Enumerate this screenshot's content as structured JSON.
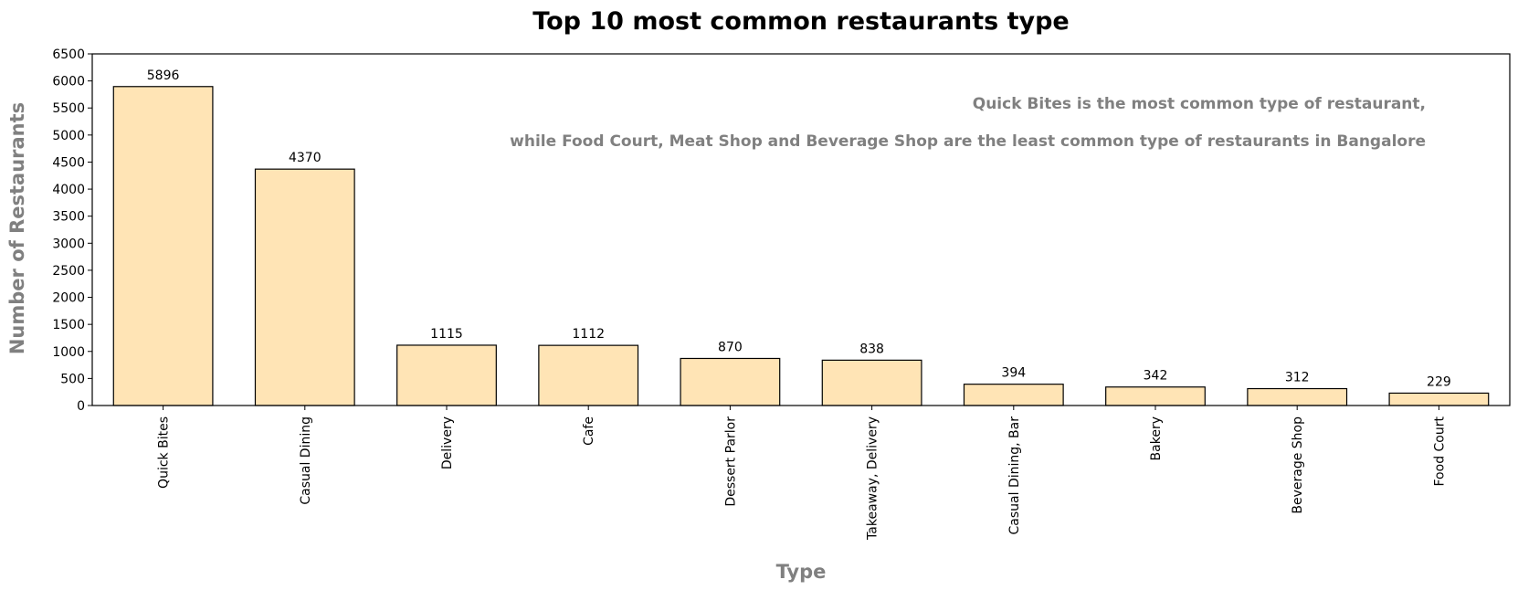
{
  "chart_data": {
    "type": "bar",
    "title": "Top 10 most common restaurants type",
    "xlabel": "Type",
    "ylabel": "Number of Restaurants",
    "categories": [
      "Quick Bites",
      "Casual Dining",
      "Delivery",
      "Cafe",
      "Dessert Parlor",
      "Takeaway, Delivery",
      "Casual Dining, Bar",
      "Bakery",
      "Beverage Shop",
      "Food Court"
    ],
    "values": [
      5896,
      4370,
      1115,
      1112,
      870,
      838,
      394,
      342,
      312,
      229
    ],
    "data_labels": [
      "5896",
      "4370",
      "1115",
      "1112",
      "870",
      "838",
      "394",
      "342",
      "312",
      "229"
    ],
    "ylim": [
      0,
      6500
    ],
    "yticks": [
      "0",
      "500",
      "1000",
      "1500",
      "2000",
      "2500",
      "3000",
      "3500",
      "4000",
      "4500",
      "5000",
      "5500",
      "6000",
      "6500"
    ],
    "grid": false,
    "legend": false,
    "bar_color": "#FFE4B5",
    "bar_edge_color": "#000000",
    "annotations": [
      "Quick Bites is the most common type of restaurant,",
      "while Food Court, Meat Shop and Beverage Shop are the least common type of restaurants in Bangalore"
    ]
  }
}
